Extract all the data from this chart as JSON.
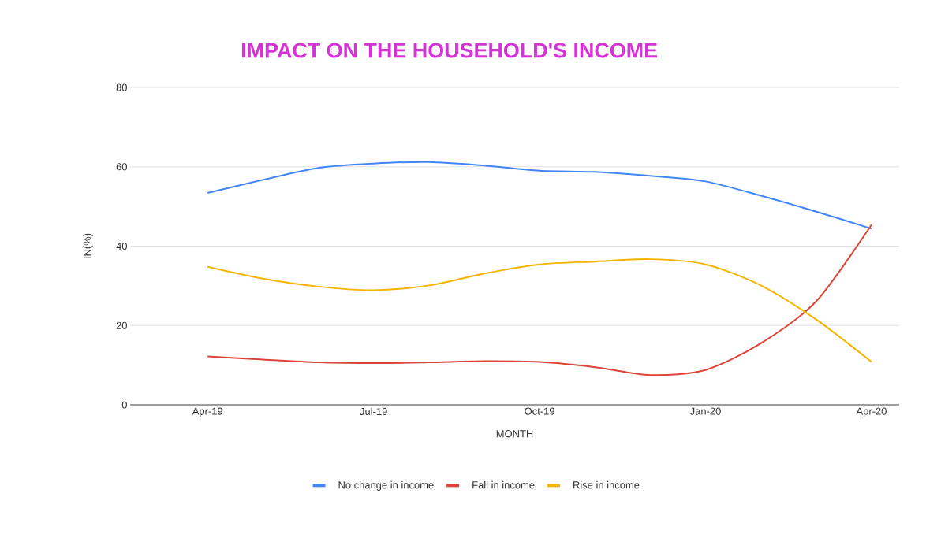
{
  "chart_data": {
    "type": "line",
    "title": "IMPACT ON THE HOUSEHOLD'S INCOME",
    "xlabel": "MONTH",
    "ylabel": "IN(%)",
    "categories": [
      "Apr-19",
      null,
      null,
      "Jul-19",
      null,
      null,
      "Oct-19",
      null,
      null,
      "Jan-20",
      null,
      null,
      "Apr-20"
    ],
    "series": [
      {
        "name": "No change in income",
        "color": "#4285f4",
        "values": [
          53.4,
          56.7,
          59.7,
          60.8,
          61.2,
          60.3,
          59.0,
          58.7,
          57.7,
          56.3,
          52.7,
          48.7,
          44.4
        ]
      },
      {
        "name": "Fall in income",
        "color": "#db4437",
        "values": [
          12.2,
          11.4,
          10.7,
          10.5,
          10.7,
          11.0,
          10.8,
          9.5,
          7.5,
          8.8,
          15.5,
          26.1,
          45.4
        ]
      },
      {
        "name": "Rise in income",
        "color": "#f4b400",
        "values": [
          34.8,
          31.8,
          29.8,
          28.9,
          30.1,
          33.1,
          35.4,
          36.1,
          36.7,
          35.4,
          30.1,
          21.5,
          10.8
        ]
      }
    ],
    "ylim": [
      0,
      80
    ],
    "yticks": [
      0,
      20,
      40,
      60,
      80
    ],
    "grid": "y",
    "legend": "bottom",
    "marker": "none",
    "line_style": "solid"
  }
}
